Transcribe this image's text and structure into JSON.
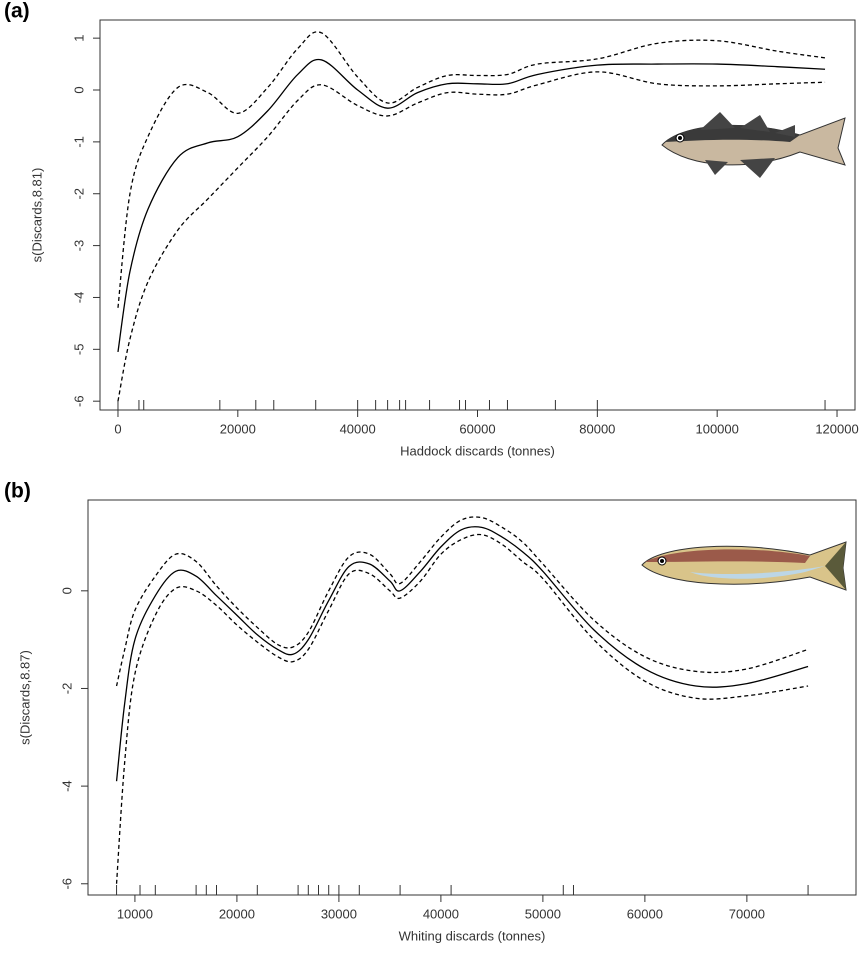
{
  "chart_data": [
    {
      "type": "line",
      "panel_label": "(a)",
      "xlabel": "Haddock discards (tonnes)",
      "ylabel": "s(Discards,8.81)",
      "x": [
        0,
        2000,
        5000,
        10000,
        15000,
        20000,
        25000,
        30000,
        34000,
        40000,
        45000,
        50000,
        55000,
        60000,
        65000,
        70000,
        80000,
        90000,
        100000,
        110000,
        118000
      ],
      "series": [
        {
          "color": "#000000",
          "line_style": "solid",
          "values": [
            -5.05,
            -3.5,
            -2.3,
            -1.3,
            -1.02,
            -0.9,
            -0.4,
            0.3,
            0.58,
            0.0,
            -0.35,
            -0.05,
            0.12,
            0.12,
            0.12,
            0.3,
            0.48,
            0.5,
            0.5,
            0.45,
            0.4
          ]
        },
        {
          "color": "#000000",
          "line_style": "dashed",
          "values": [
            -4.2,
            -2.0,
            -0.9,
            0.05,
            -0.05,
            -0.45,
            0.05,
            0.8,
            1.1,
            0.25,
            -0.25,
            0.05,
            0.28,
            0.28,
            0.3,
            0.5,
            0.6,
            0.9,
            0.95,
            0.75,
            0.62
          ]
        },
        {
          "color": "#000000",
          "line_style": "dashed",
          "values": [
            -6.0,
            -4.8,
            -3.7,
            -2.7,
            -2.1,
            -1.5,
            -0.9,
            -0.2,
            0.1,
            -0.3,
            -0.5,
            -0.25,
            -0.05,
            -0.08,
            -0.08,
            0.1,
            0.35,
            0.12,
            0.08,
            0.12,
            0.15
          ]
        }
      ],
      "rug": [
        0,
        3500,
        4300,
        17000,
        23000,
        26000,
        33000,
        40000,
        43000,
        45000,
        47000,
        48000,
        52000,
        57000,
        58000,
        62000,
        65000,
        73000,
        80000,
        118000
      ],
      "xlim": [
        -3000,
        123000
      ],
      "ylim": [
        -6.17,
        1.35
      ],
      "xticks": [
        0,
        20000,
        40000,
        60000,
        80000,
        100000,
        120000
      ],
      "yticks": [
        -6,
        -5,
        -4,
        -3,
        -2,
        -1,
        0,
        1
      ]
    },
    {
      "type": "line",
      "panel_label": "(b)",
      "xlabel": "Whiting discards (tonnes)",
      "ylabel": "s(Discards,8.87)",
      "x": [
        8200,
        9000,
        10000,
        12000,
        14000,
        16000,
        18000,
        20000,
        22000,
        24000,
        25500,
        27000,
        29000,
        31000,
        33000,
        35000,
        36000,
        38000,
        40000,
        42000,
        44000,
        46000,
        48000,
        50000,
        55000,
        60000,
        65000,
        70000,
        76000
      ],
      "series": [
        {
          "color": "#000000",
          "line_style": "solid",
          "values": [
            -3.9,
            -2.3,
            -1.0,
            -0.1,
            0.4,
            0.3,
            -0.1,
            -0.5,
            -0.9,
            -1.2,
            -1.3,
            -1.0,
            -0.2,
            0.5,
            0.55,
            0.2,
            0.0,
            0.4,
            0.9,
            1.25,
            1.3,
            1.1,
            0.8,
            0.4,
            -0.8,
            -1.6,
            -1.95,
            -1.9,
            -1.55
          ]
        },
        {
          "color": "#000000",
          "line_style": "dashed",
          "values": [
            -1.95,
            -1.2,
            -0.4,
            0.3,
            0.75,
            0.6,
            0.1,
            -0.35,
            -0.75,
            -1.1,
            -1.15,
            -0.85,
            0.0,
            0.7,
            0.75,
            0.35,
            0.15,
            0.6,
            1.1,
            1.45,
            1.5,
            1.3,
            1.0,
            0.55,
            -0.6,
            -1.35,
            -1.65,
            -1.6,
            -1.2
          ]
        },
        {
          "color": "#000000",
          "line_style": "dashed",
          "values": [
            -6.0,
            -3.5,
            -1.7,
            -0.5,
            0.05,
            0.0,
            -0.3,
            -0.7,
            -1.05,
            -1.35,
            -1.45,
            -1.2,
            -0.4,
            0.35,
            0.35,
            0.0,
            -0.15,
            0.2,
            0.75,
            1.05,
            1.15,
            0.95,
            0.6,
            0.25,
            -1.0,
            -1.85,
            -2.2,
            -2.15,
            -1.95
          ]
        }
      ],
      "rug": [
        8200,
        10500,
        12000,
        16000,
        17000,
        18000,
        22000,
        26000,
        27000,
        28000,
        29000,
        30000,
        32000,
        36000,
        41000,
        52000,
        53000,
        76000
      ],
      "xlim": [
        5400,
        80700
      ],
      "ylim": [
        -6.23,
        1.86
      ],
      "xticks": [
        10000,
        20000,
        30000,
        40000,
        50000,
        60000,
        70000
      ],
      "yticks": [
        -6,
        -4,
        -2,
        0
      ]
    }
  ]
}
